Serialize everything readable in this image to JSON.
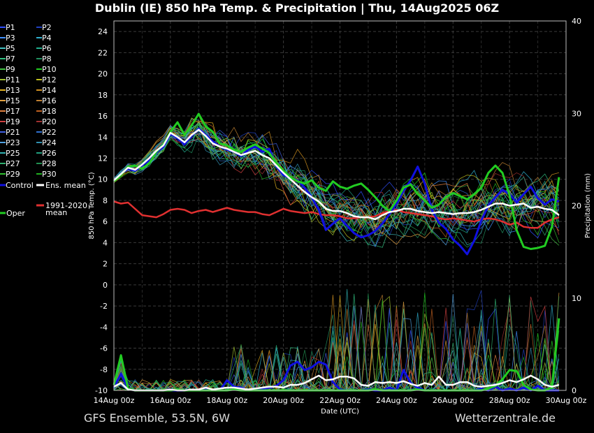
{
  "title": "Dublin  (IE)  850 hPa Temp. & Precipitation | Thu, 14Aug2025 06Z",
  "footer_left": "GFS Ensemble, 53.5N, 6W",
  "footer_right": "Wetterzentrale.de",
  "colors": {
    "background": "#000000",
    "grid": "#444444",
    "control": "#1010e0",
    "ens_mean": "#ffffff",
    "oper": "#22cc22",
    "climate": "#e03030"
  },
  "legend": {
    "members": [
      {
        "label": "P1",
        "color": "#3050ff"
      },
      {
        "label": "P2",
        "color": "#2040c0"
      },
      {
        "label": "P3",
        "color": "#4090ff"
      },
      {
        "label": "P4",
        "color": "#30b0d0"
      },
      {
        "label": "P5",
        "color": "#40c0c0"
      },
      {
        "label": "P6",
        "color": "#20b090"
      },
      {
        "label": "P7",
        "color": "#30c080"
      },
      {
        "label": "P8",
        "color": "#209060"
      },
      {
        "label": "P9",
        "color": "#40c040"
      },
      {
        "label": "P10",
        "color": "#20d020"
      },
      {
        "label": "P11",
        "color": "#a0c030"
      },
      {
        "label": "P12",
        "color": "#c0c020"
      },
      {
        "label": "P13",
        "color": "#e0b020"
      },
      {
        "label": "P14",
        "color": "#d09020"
      },
      {
        "label": "P15",
        "color": "#e0a040"
      },
      {
        "label": "P16",
        "color": "#c08030"
      },
      {
        "label": "P17",
        "color": "#e08040"
      },
      {
        "label": "P18",
        "color": "#c06020"
      },
      {
        "label": "P19",
        "color": "#d04040"
      },
      {
        "label": "P20",
        "color": "#a03030"
      },
      {
        "label": "P21",
        "color": "#4060e0"
      },
      {
        "label": "P22",
        "color": "#3070d0"
      },
      {
        "label": "P23",
        "color": "#50a0e0"
      },
      {
        "label": "P24",
        "color": "#3090b0"
      },
      {
        "label": "P25",
        "color": "#30b0b0"
      },
      {
        "label": "P26",
        "color": "#20a080"
      },
      {
        "label": "P27",
        "color": "#30b070"
      },
      {
        "label": "P28",
        "color": "#209050"
      },
      {
        "label": "P29",
        "color": "#30c030"
      },
      {
        "label": "P30",
        "color": "#20b020"
      }
    ],
    "control": "Control",
    "ens_mean": "Ens. mean",
    "climate": "1991-2020 mean",
    "climate_line1": "1991-2020",
    "climate_line2": "mean",
    "oper": "Oper"
  },
  "chart_data": {
    "type": "line",
    "ylabel": "850 hPa Temp. (°C)",
    "y2label": "Precipitation (mm)",
    "xlabel": "Date (UTC)",
    "ylim": [
      -10,
      25
    ],
    "y2lim": [
      0,
      40
    ],
    "yticks": [
      -10,
      -8,
      -6,
      -4,
      -2,
      0,
      2,
      4,
      6,
      8,
      10,
      12,
      14,
      16,
      18,
      20,
      22,
      24
    ],
    "y2ticks": [
      0,
      10,
      20,
      30,
      40
    ],
    "xticks": [
      "14Aug 00z",
      "16Aug 00z",
      "18Aug 00z",
      "20Aug 00z",
      "22Aug 00z",
      "24Aug 00z",
      "26Aug 00z",
      "28Aug 00z",
      "30Aug 00z"
    ],
    "x_start": "14Aug 00z",
    "x_step_hours": 6,
    "grid": true,
    "series": [
      {
        "name": "Control",
        "role": "control",
        "axis": "temp",
        "values": [
          9.8,
          10.5,
          11.0,
          10.8,
          11.3,
          11.8,
          12.5,
          13.1,
          14.3,
          13.9,
          13.3,
          14.1,
          14.8,
          14.2,
          13.6,
          13.1,
          12.8,
          12.6,
          12.2,
          12.8,
          13.1,
          12.6,
          12.9,
          11.2,
          10.4,
          10.1,
          9.9,
          9.2,
          8.3,
          7.1,
          5.2,
          5.8,
          6.3,
          5.6,
          4.9,
          4.5,
          4.7,
          5.1,
          5.8,
          6.7,
          7.7,
          8.9,
          9.9,
          11.2,
          9.6,
          7.1,
          5.9,
          5.3,
          4.3,
          3.7,
          2.9,
          4.2,
          6.1,
          7.5,
          8.3,
          9.0,
          8.6,
          7.8,
          8.6,
          9.3,
          8.2,
          7.6,
          8.1,
          7.9
        ]
      },
      {
        "name": "Ens. mean",
        "role": "mean",
        "axis": "temp",
        "values": [
          9.9,
          10.5,
          11.1,
          10.9,
          11.4,
          12.0,
          12.7,
          13.2,
          14.4,
          14.0,
          13.5,
          14.2,
          14.7,
          14.1,
          13.4,
          13.1,
          12.9,
          12.6,
          12.3,
          12.5,
          12.7,
          12.3,
          12.0,
          11.3,
          10.6,
          10.0,
          9.4,
          8.8,
          8.3,
          7.9,
          7.2,
          7.0,
          7.0,
          6.8,
          6.5,
          6.4,
          6.4,
          6.2,
          6.6,
          6.9,
          7.0,
          7.2,
          7.2,
          7.0,
          6.9,
          6.8,
          6.9,
          6.8,
          6.7,
          6.8,
          6.8,
          6.9,
          7.1,
          7.4,
          7.7,
          7.7,
          7.5,
          7.6,
          7.7,
          7.3,
          7.4,
          7.2,
          7.1,
          6.6
        ]
      },
      {
        "name": "Oper",
        "role": "oper",
        "axis": "temp",
        "values": [
          9.8,
          10.4,
          11.2,
          11.3,
          11.0,
          11.5,
          12.6,
          13.3,
          14.5,
          15.4,
          14.2,
          15.1,
          16.2,
          15.0,
          14.5,
          13.4,
          13.2,
          12.8,
          12.6,
          13.0,
          13.3,
          12.9,
          12.5,
          11.5,
          10.8,
          10.2,
          9.8,
          9.6,
          9.9,
          9.2,
          8.9,
          9.8,
          9.3,
          9.1,
          9.4,
          9.6,
          9.0,
          8.3,
          7.5,
          7.0,
          8.0,
          9.2,
          9.5,
          8.6,
          8.0,
          7.3,
          7.6,
          8.3,
          8.7,
          8.4,
          8.1,
          8.6,
          9.2,
          10.6,
          11.3,
          10.6,
          8.5,
          5.2,
          3.6,
          3.4,
          3.5,
          3.7,
          5.5,
          10.2
        ]
      },
      {
        "name": "1991-2020 mean",
        "role": "climate",
        "axis": "temp",
        "values": [
          7.9,
          7.7,
          7.8,
          7.2,
          6.6,
          6.5,
          6.4,
          6.7,
          7.1,
          7.2,
          7.1,
          6.8,
          7.0,
          7.1,
          6.9,
          7.1,
          7.3,
          7.1,
          7.0,
          6.9,
          6.9,
          6.7,
          6.6,
          6.9,
          7.2,
          7.0,
          6.9,
          6.8,
          6.9,
          6.7,
          6.6,
          6.6,
          6.5,
          6.3,
          6.3,
          6.4,
          6.4,
          6.5,
          6.8,
          7.0,
          7.1,
          6.9,
          6.8,
          6.7,
          6.6,
          6.5,
          6.3,
          6.2,
          6.3,
          6.2,
          6.1,
          6.0,
          6.2,
          6.3,
          6.2,
          6.0,
          5.7,
          5.9,
          5.5,
          5.4,
          5.4,
          5.9,
          6.2,
          6.4
        ]
      },
      {
        "name": "Control",
        "role": "control",
        "axis": "precip",
        "values": [
          0.3,
          1.8,
          0.2,
          0,
          0,
          0,
          0,
          0,
          0,
          0,
          0,
          0,
          0,
          0.1,
          0,
          0,
          1.1,
          0.4,
          0.3,
          0,
          0,
          0.2,
          0.3,
          0.5,
          1.1,
          2.7,
          3.1,
          2.2,
          2.5,
          3.1,
          2.8,
          0.9,
          0.1,
          0,
          0,
          0,
          0.1,
          0,
          0,
          0.3,
          0,
          2.2,
          0.8,
          0.3,
          0,
          0,
          0,
          0,
          0,
          0,
          0,
          0,
          0.2,
          0,
          0.4,
          0,
          0.2,
          0,
          0.3,
          0,
          0.5,
          0,
          0,
          0
        ]
      },
      {
        "name": "Ens. mean",
        "role": "mean",
        "axis": "precip",
        "values": [
          0.4,
          0.8,
          0.1,
          0,
          0,
          0,
          0,
          0,
          0.1,
          0,
          0,
          0.1,
          0.1,
          0.3,
          0.1,
          0.2,
          0.3,
          0.3,
          0.2,
          0.1,
          0.2,
          0.3,
          0.4,
          0.4,
          0.3,
          0.6,
          0.6,
          0.8,
          1.2,
          1.6,
          1.1,
          1.2,
          1.5,
          1.5,
          1.3,
          0.6,
          0.5,
          0.9,
          0.8,
          0.9,
          0.8,
          1.0,
          0.7,
          0.5,
          0.8,
          0.6,
          1.5,
          0.6,
          0.6,
          0.9,
          0.9,
          0.5,
          0.4,
          0.5,
          0.6,
          0.8,
          1.1,
          0.9,
          1.2,
          1.6,
          1.2,
          0.6,
          0.4,
          0.6
        ]
      },
      {
        "name": "Oper",
        "role": "oper",
        "axis": "precip",
        "values": [
          0.6,
          3.8,
          0.2,
          0,
          0,
          0,
          0,
          0,
          0,
          0.1,
          0,
          0,
          0,
          0,
          0,
          0,
          0,
          0.1,
          0,
          0,
          0,
          0,
          0,
          0,
          0,
          0,
          0,
          0,
          0,
          0,
          0,
          0,
          0,
          0,
          0,
          0,
          0,
          0.1,
          0,
          0,
          0,
          0,
          0,
          0.1,
          0,
          0,
          0,
          0,
          0,
          0,
          0,
          0,
          0,
          0.2,
          0.5,
          1.2,
          2.2,
          2.1,
          0.6,
          0.1,
          0,
          0,
          0.3,
          7.8
        ]
      }
    ]
  }
}
